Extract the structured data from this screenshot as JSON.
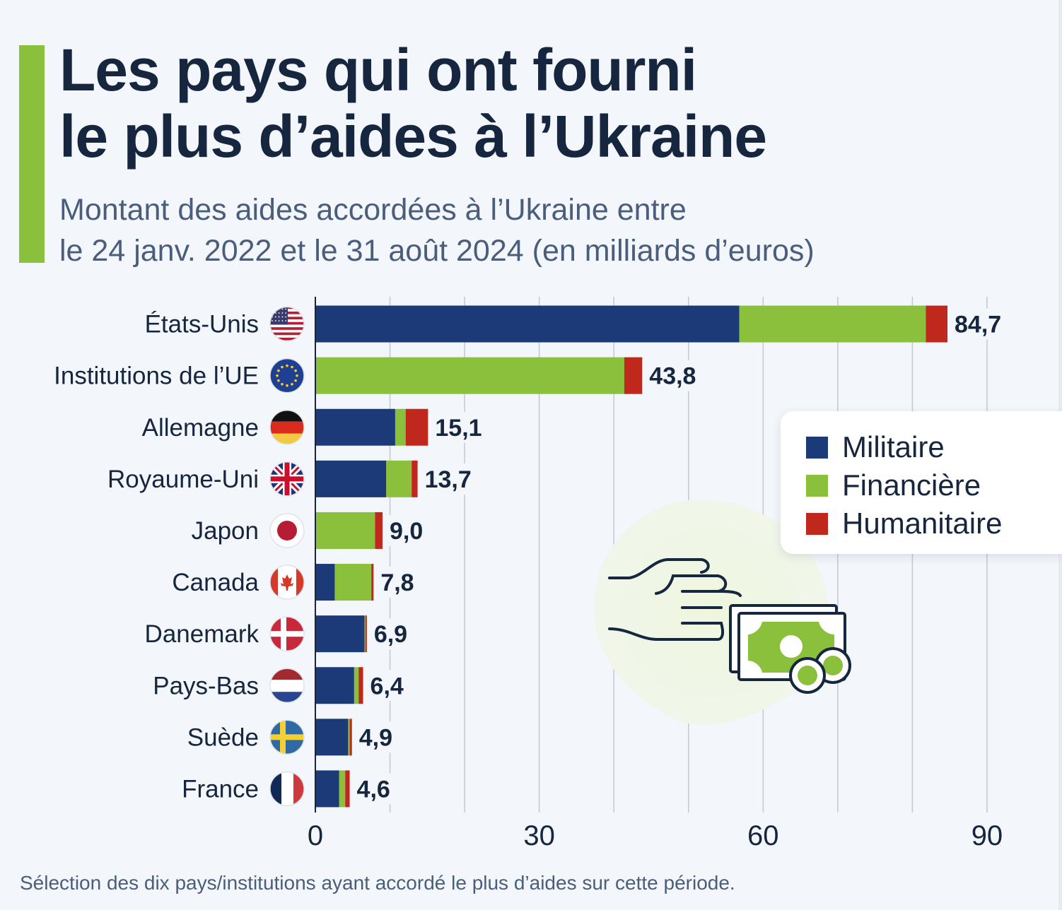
{
  "header": {
    "title_lines": [
      "Les pays qui ont fourni",
      "le plus d’aides à l’Ukraine"
    ],
    "subtitle_lines": [
      "Montant des aides accordées à l’Ukraine entre",
      "le 24 janv. 2022 et le 31 août 2024 (en milliards d’euros)"
    ]
  },
  "colors": {
    "accent": "#8bc03c",
    "militaire": "#1c3a78",
    "financiere": "#8bc03c",
    "humanitaire": "#c0281e",
    "text": "#16263f",
    "grid": "#c3c9d2"
  },
  "chart_data": {
    "type": "bar",
    "orientation": "horizontal",
    "stacked": true,
    "title": "Les pays qui ont fourni le plus d’aides à l’Ukraine",
    "subtitle": "Montant des aides accordées à l’Ukraine entre le 24 janv. 2022 et le 31 août 2024 (en milliards d’euros)",
    "xlabel": "",
    "ylabel": "",
    "xlim": [
      0,
      90
    ],
    "xticks": [
      0,
      30,
      60,
      90
    ],
    "minor_gridlines": [
      10,
      20,
      40,
      50,
      70,
      80
    ],
    "grid": true,
    "legend_position": "right",
    "categories": [
      "États-Unis",
      "Institutions de l’UE",
      "Allemagne",
      "Royaume-Uni",
      "Japon",
      "Canada",
      "Danemark",
      "Pays-Bas",
      "Suède",
      "France"
    ],
    "flags": [
      "us-flag-icon",
      "eu-flag-icon",
      "germany-flag-icon",
      "uk-flag-icon",
      "japan-flag-icon",
      "canada-flag-icon",
      "denmark-flag-icon",
      "netherlands-flag-icon",
      "sweden-flag-icon",
      "france-flag-icon"
    ],
    "series": [
      {
        "name": "Militaire",
        "values": [
          56.8,
          0,
          10.7,
          9.5,
          0,
          2.6,
          6.6,
          5.2,
          4.4,
          3.2
        ]
      },
      {
        "name": "Financière",
        "values": [
          25.0,
          41.4,
          1.4,
          3.4,
          8.0,
          4.9,
          0.1,
          0.6,
          0.2,
          0.8
        ]
      },
      {
        "name": "Humanitaire",
        "values": [
          2.9,
          2.4,
          3.0,
          0.8,
          1.0,
          0.3,
          0.2,
          0.6,
          0.3,
          0.6
        ]
      }
    ],
    "totals": [
      84.7,
      43.8,
      15.1,
      13.7,
      9.0,
      7.8,
      6.9,
      6.4,
      4.9,
      4.6
    ],
    "total_labels": [
      "84,7",
      "43,8",
      "15,1",
      "13,7",
      "9,0",
      "7,8",
      "6,9",
      "6,4",
      "4,9",
      "4,6"
    ],
    "tick_labels": [
      "0",
      "30",
      "60",
      "90"
    ]
  },
  "legend": {
    "items": [
      "Militaire",
      "Financière",
      "Humanitaire"
    ]
  },
  "footnote": "Sélection des dix pays/institutions ayant accordé le plus d’aides sur cette période.",
  "illustration": "hand-giving-money-icon"
}
